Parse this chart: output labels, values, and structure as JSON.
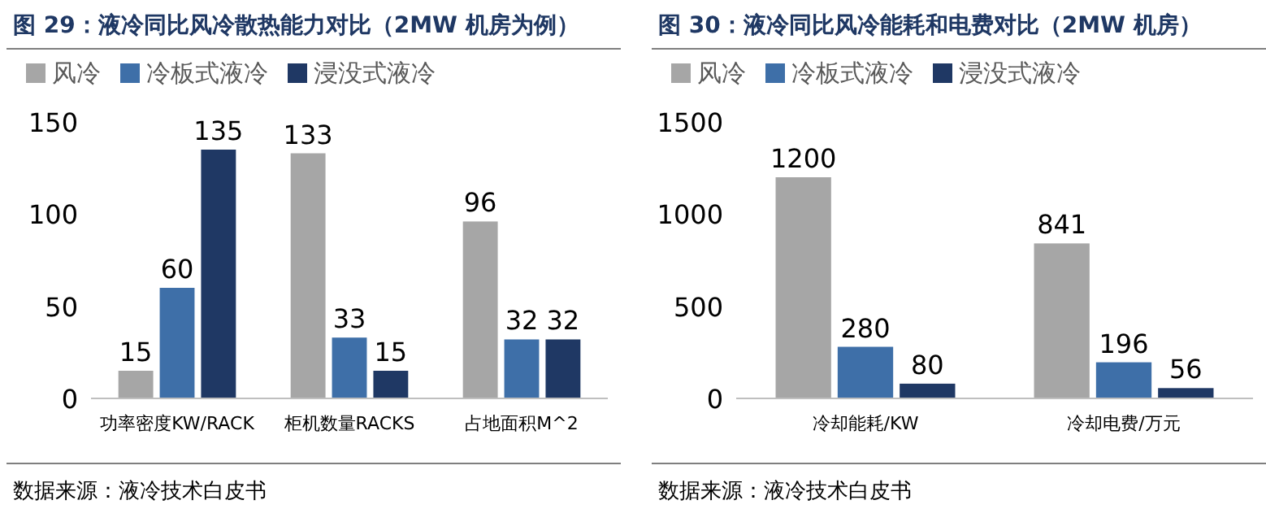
{
  "chart_data": [
    {
      "type": "bar",
      "title": "图 29：液冷同比风冷散热能力对比（2MW 机房为例）",
      "categories": [
        "功率密度KW/RACK",
        "柜机数量RACKS",
        "占地面积M^2"
      ],
      "series": [
        {
          "name": "风冷",
          "color": "#a6a6a6",
          "values": [
            15,
            133,
            96
          ]
        },
        {
          "name": "冷板式液冷",
          "color": "#3e6fa8",
          "values": [
            60,
            33,
            32
          ]
        },
        {
          "name": "浸没式液冷",
          "color": "#1f3864",
          "values": [
            135,
            15,
            32
          ]
        }
      ],
      "ylim": [
        0,
        150
      ],
      "yticks": [
        0,
        50,
        100,
        150
      ],
      "data_labels": true,
      "legend": "top left",
      "grid": false,
      "annotations": [
        "数据来源：液冷技术白皮书"
      ]
    },
    {
      "type": "bar",
      "title": "图 30：液冷同比风冷能耗和电费对比（2MW 机房）",
      "categories": [
        "冷却能耗/KW",
        "冷却电费/万元"
      ],
      "series": [
        {
          "name": "风冷",
          "color": "#a6a6a6",
          "values": [
            1200,
            841
          ]
        },
        {
          "name": "冷板式液冷",
          "color": "#3e6fa8",
          "values": [
            280,
            196
          ]
        },
        {
          "name": "浸没式液冷",
          "color": "#1f3864",
          "values": [
            80,
            56
          ]
        }
      ],
      "ylim": [
        0,
        1500
      ],
      "yticks": [
        0,
        500,
        1000,
        1500
      ],
      "data_labels": true,
      "legend": "top left",
      "grid": false,
      "annotations": [
        "数据来源：液冷技术白皮书"
      ]
    }
  ]
}
